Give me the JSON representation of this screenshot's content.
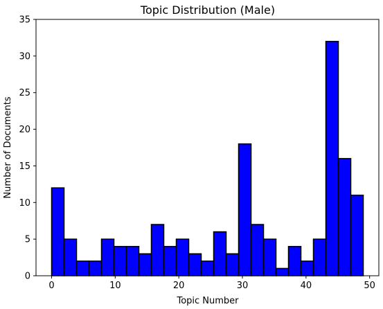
{
  "chart_data": {
    "type": "bar",
    "subtype": "histogram",
    "title": "Topic Distribution (Male)",
    "xlabel": "Topic Number",
    "ylabel": "Number of Documents",
    "xlim": [
      -2.45,
      51.45
    ],
    "ylim": [
      0,
      35
    ],
    "xticks": [
      0,
      10,
      20,
      30,
      40,
      50
    ],
    "yticks": [
      0,
      5,
      10,
      15,
      20,
      25,
      30,
      35
    ],
    "bin_edges": [
      0,
      1.96,
      3.92,
      5.88,
      7.84,
      9.8,
      11.76,
      13.72,
      15.68,
      17.64,
      19.6,
      21.56,
      23.52,
      25.48,
      27.44,
      29.4,
      31.36,
      33.32,
      35.28,
      37.24,
      39.2,
      41.16,
      43.12,
      45.08,
      47.04,
      49
    ],
    "counts": [
      12,
      5,
      2,
      2,
      5,
      4,
      4,
      3,
      7,
      4,
      5,
      3,
      2,
      6,
      3,
      18,
      7,
      5,
      1,
      4,
      2,
      5,
      32,
      16,
      11
    ],
    "bar_color": "#0000ff",
    "edge_color": "#000000",
    "grid": false
  }
}
